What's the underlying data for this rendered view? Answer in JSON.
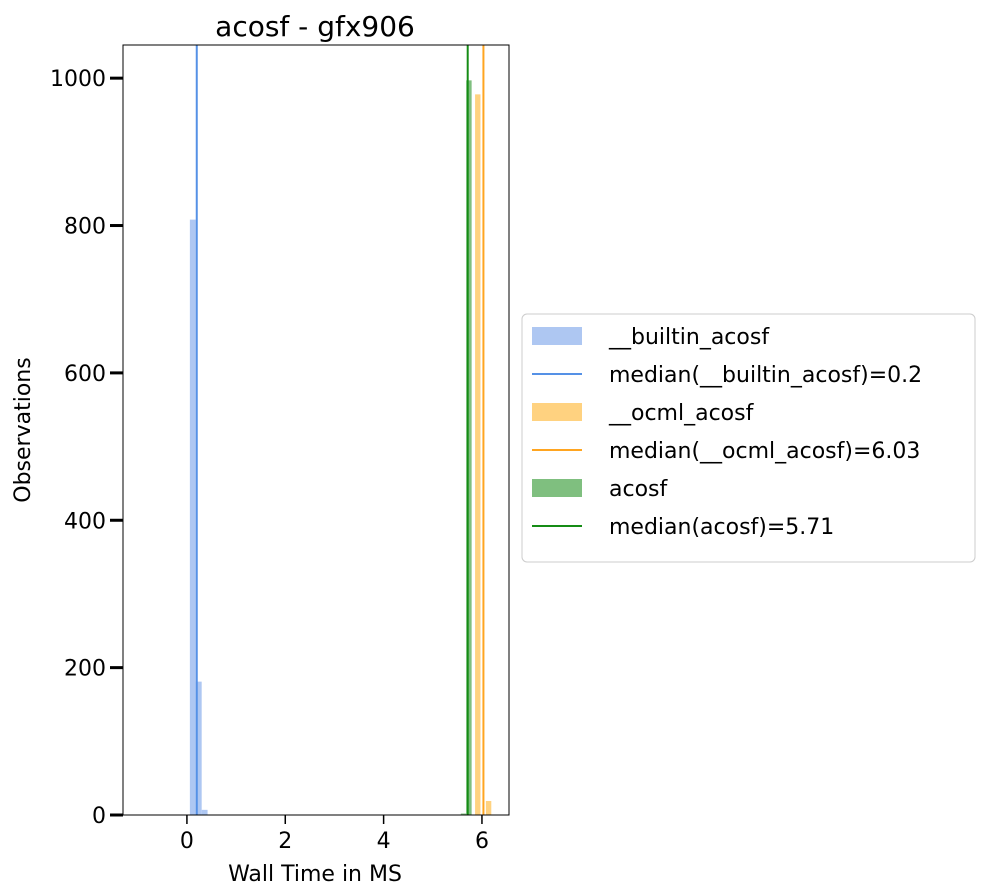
{
  "chart_data": {
    "type": "bar",
    "title": "acosf - gfx906",
    "xlabel": "Wall Time in MS",
    "ylabel": "Observations",
    "xlim": [
      -1.3,
      6.55
    ],
    "ylim": [
      0,
      1045
    ],
    "xticks": [
      0,
      2,
      4,
      6
    ],
    "yticks": [
      0,
      200,
      400,
      600,
      800,
      1000
    ],
    "xtick_labels": [
      "0",
      "2",
      "4",
      "6"
    ],
    "ytick_labels": [
      "0",
      "200",
      "400",
      "600",
      "800",
      "1000"
    ],
    "grid": false,
    "legend_position": "outside right",
    "series": [
      {
        "name": "__builtin_acosf",
        "color": "#aec7f2",
        "bins": [
          {
            "x0": 0.06,
            "x1": 0.18,
            "count": 808
          },
          {
            "x0": 0.18,
            "x1": 0.3,
            "count": 181
          },
          {
            "x0": 0.3,
            "x1": 0.42,
            "count": 7
          }
        ]
      },
      {
        "name": "__ocml_acosf",
        "color": "#ffd280",
        "bins": [
          {
            "x0": 5.86,
            "x1": 5.97,
            "count": 978
          },
          {
            "x0": 5.97,
            "x1": 6.08,
            "count": 0
          },
          {
            "x0": 6.08,
            "x1": 6.19,
            "count": 19
          }
        ]
      },
      {
        "name": "acosf",
        "color": "#7fbf7f",
        "bins": [
          {
            "x0": 5.57,
            "x1": 5.68,
            "count": 2
          },
          {
            "x0": 5.68,
            "x1": 5.79,
            "count": 997
          }
        ]
      }
    ],
    "medians": [
      {
        "name": "median(__builtin_acosf)=0.2",
        "value": 0.2,
        "color": "#5591e6"
      },
      {
        "name": "median(__ocml_acosf)=6.03",
        "value": 6.03,
        "color": "#ffa520"
      },
      {
        "name": "median(acosf)=5.71",
        "value": 5.71,
        "color": "#158c15"
      }
    ],
    "legend": [
      {
        "label": "__builtin_acosf",
        "kind": "patch",
        "color": "#aec7f2"
      },
      {
        "label": "median(__builtin_acosf)=0.2",
        "kind": "line",
        "color": "#5591e6"
      },
      {
        "label": "__ocml_acosf",
        "kind": "patch",
        "color": "#ffd280"
      },
      {
        "label": "median(__ocml_acosf)=6.03",
        "kind": "line",
        "color": "#ffa520"
      },
      {
        "label": "acosf",
        "kind": "patch",
        "color": "#7fbf7f"
      },
      {
        "label": "median(acosf)=5.71",
        "kind": "line",
        "color": "#158c15"
      }
    ]
  }
}
